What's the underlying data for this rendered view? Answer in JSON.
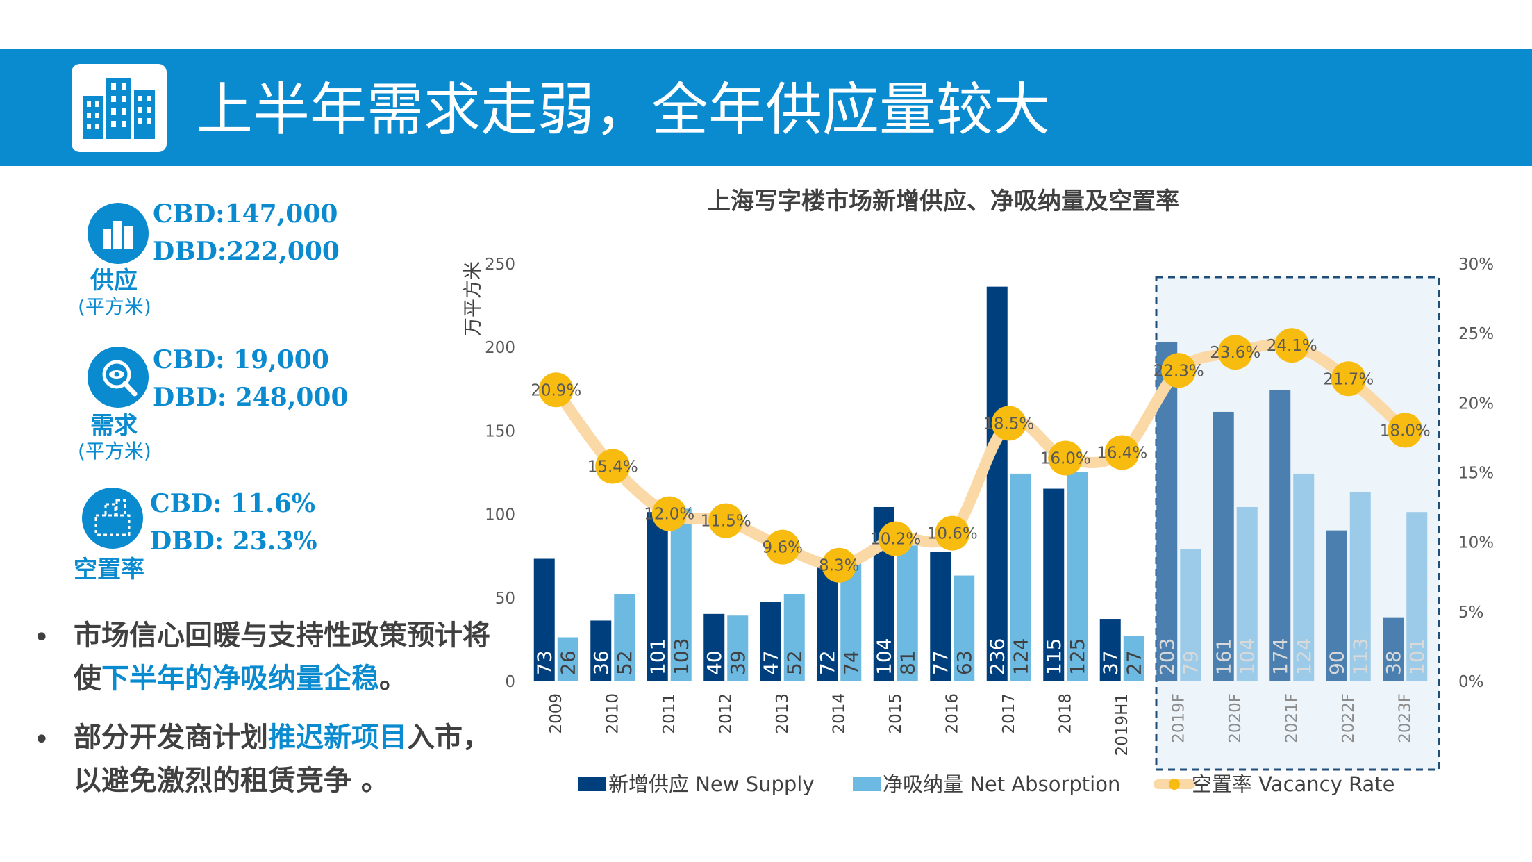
{
  "header": {
    "title": "上半年需求走弱，全年供应量较大"
  },
  "stats": {
    "supply": {
      "line1": "CBD:147,000",
      "line2": "DBD:222,000",
      "label": "供应",
      "unit": "(平方米)"
    },
    "demand": {
      "line1": "CBD: 19,000",
      "line2": "DBD: 248,000",
      "label": "需求",
      "unit": "(平方米)"
    },
    "vacancy": {
      "line1": "CBD: 11.6%",
      "line2": "DBD: 23.3%",
      "label": "空置率"
    }
  },
  "bullets": {
    "b1": {
      "pre": "市场信心回暖与支持性政策预计将使",
      "hl": "下半年的净吸纳量企稳",
      "post": "。"
    },
    "b2": {
      "pre": "部分开发商计划",
      "hl": "推迟新项目",
      "post": "入市，以避免激烈的租赁竞争 。"
    },
    "mark": "•"
  },
  "chart_data": {
    "type": "bar",
    "title": "上海写字楼市场新增供应、净吸纳量及空置率",
    "ylabel": "万平方米",
    "ylim": [
      0,
      250
    ],
    "y2lim": [
      0,
      30
    ],
    "yticks": [
      "0",
      "50",
      "100",
      "150",
      "200",
      "250"
    ],
    "y2ticks": [
      "0%",
      "5%",
      "10%",
      "15%",
      "20%",
      "25%",
      "30%"
    ],
    "categories": [
      "2009",
      "2010",
      "2011",
      "2012",
      "2013",
      "2014",
      "2015",
      "2016",
      "2017",
      "2018",
      "2019H1",
      "2019F",
      "2020F",
      "2021F",
      "2022F",
      "2023F"
    ],
    "forecast_from_index": 11,
    "series": [
      {
        "name": "新增供应 New Supply",
        "type": "bar",
        "color": "#003f7d",
        "forecast_color": "#4a7fb0",
        "values": [
          73,
          36,
          101,
          40,
          47,
          72,
          104,
          77,
          236,
          115,
          37,
          203,
          161,
          174,
          90,
          38
        ]
      },
      {
        "name": "净吸纳量 Net Absorption",
        "type": "bar",
        "color": "#6cb9e2",
        "forecast_color": "#9ccbea",
        "values": [
          26,
          52,
          103,
          39,
          52,
          74,
          81,
          63,
          124,
          125,
          27,
          79,
          104,
          124,
          113,
          101
        ]
      },
      {
        "name": "空置率 Vacancy Rate",
        "type": "line",
        "axis": "right",
        "color": "#fbd9a7",
        "marker_color": "#f8bc10",
        "values": [
          20.9,
          15.4,
          12.0,
          11.5,
          9.6,
          8.3,
          10.2,
          10.6,
          18.5,
          16.0,
          16.4,
          22.3,
          23.6,
          24.1,
          21.7,
          18.0
        ],
        "labels": [
          "20.9%",
          "15.4%",
          "12.0%",
          "11.5%",
          "9.6%",
          "8.3%",
          "10.2%",
          "10.6%",
          "18.5%",
          "16.0%",
          "16.4%",
          "22.3%",
          "23.6%",
          "24.1%",
          "21.7%",
          "18.0%"
        ]
      }
    ],
    "legend": "bottom",
    "grid": false
  }
}
